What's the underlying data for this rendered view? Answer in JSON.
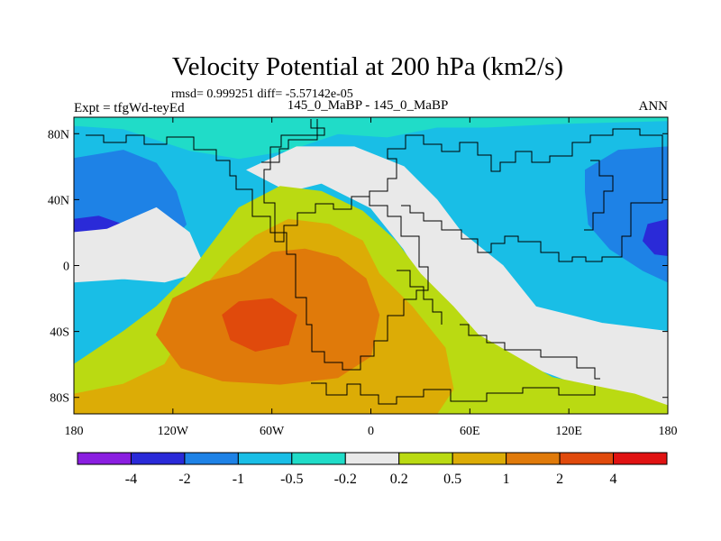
{
  "chart_data": {
    "type": "heatmap",
    "title": "Velocity Potential at 200 hPa (km2/s)",
    "stats": "rmsd= 0.999251 diff= -5.57142e-05",
    "experiment": "Expt = tfgWd-teyEd",
    "case": "145_0_MaBP - 145_0_MaBP",
    "season": "ANN",
    "xlim": [
      -180,
      180
    ],
    "ylim": [
      -90,
      90
    ],
    "x_ticks": [
      {
        "value": -180,
        "label": "180"
      },
      {
        "value": -120,
        "label": "120W"
      },
      {
        "value": -60,
        "label": "60W"
      },
      {
        "value": 0,
        "label": "0"
      },
      {
        "value": 60,
        "label": "60E"
      },
      {
        "value": 120,
        "label": "120E"
      },
      {
        "value": 180,
        "label": "180"
      }
    ],
    "y_ticks": [
      {
        "value": 80,
        "label": "80N"
      },
      {
        "value": 40,
        "label": "40N"
      },
      {
        "value": 0,
        "label": "0"
      },
      {
        "value": -40,
        "label": "40S"
      },
      {
        "value": -80,
        "label": "80S"
      }
    ],
    "colorbar": {
      "colors": [
        "#8a1ee0",
        "#2a2ad8",
        "#1e82e6",
        "#19bee6",
        "#20dcc8",
        "#e9e9e9",
        "#bada12",
        "#dcac06",
        "#e07a0a",
        "#e04a0c",
        "#e01212"
      ],
      "boundaries": [
        "-4",
        "-2",
        "-1",
        "-0.5",
        "-0.2",
        "0.2",
        "0.5",
        "1",
        "2",
        "4"
      ]
    },
    "field_regions": [
      {
        "color": "#1e82e6",
        "value_class": "-2 to -1",
        "location": "west Pacific / north Pacific",
        "polygon": [
          [
            -180,
            65
          ],
          [
            -150,
            70
          ],
          [
            -130,
            62
          ],
          [
            -118,
            45
          ],
          [
            -112,
            25
          ],
          [
            -125,
            10
          ],
          [
            -150,
            3
          ],
          [
            -180,
            5
          ]
        ]
      },
      {
        "color": "#2a2ad8",
        "value_class": "-4 to -2",
        "location": "central Pacific",
        "polygon": [
          [
            -180,
            28
          ],
          [
            -165,
            30
          ],
          [
            -148,
            24
          ],
          [
            -142,
            15
          ],
          [
            -152,
            7
          ],
          [
            -168,
            6
          ],
          [
            -180,
            10
          ]
        ]
      },
      {
        "color": "#1e82e6",
        "value_class": "-2 to -1",
        "location": "east Asia / west Pacific",
        "polygon": [
          [
            130,
            58
          ],
          [
            150,
            70
          ],
          [
            180,
            72
          ],
          [
            180,
            -10
          ],
          [
            165,
            -3
          ],
          [
            145,
            10
          ],
          [
            132,
            25
          ],
          [
            130,
            45
          ]
        ]
      },
      {
        "color": "#2a2ad8",
        "value_class": "-4 to -2",
        "location": "west Pacific edge",
        "polygon": [
          [
            180,
            28
          ],
          [
            168,
            25
          ],
          [
            165,
            15
          ],
          [
            172,
            7
          ],
          [
            180,
            6
          ]
        ]
      },
      {
        "color": "#20dcc8",
        "value_class": "-0.5 to -0.2",
        "location": "Arctic band",
        "polygon": [
          [
            -180,
            90
          ],
          [
            180,
            90
          ],
          [
            180,
            88
          ],
          [
            110,
            86
          ],
          [
            70,
            84
          ],
          [
            40,
            84
          ],
          [
            10,
            78
          ],
          [
            -20,
            80
          ],
          [
            -50,
            70
          ],
          [
            -80,
            65
          ],
          [
            -110,
            70
          ],
          [
            -150,
            83
          ],
          [
            -180,
            85
          ]
        ]
      },
      {
        "color": "#20dcc8",
        "value_class": "-0.5 to -0.2",
        "location": "Indian Ocean",
        "polygon": [
          [
            100,
            -45
          ],
          [
            106,
            -42
          ],
          [
            114,
            -43
          ],
          [
            118,
            -47
          ],
          [
            112,
            -51
          ],
          [
            102,
            -50
          ],
          [
            97,
            -47
          ]
        ]
      },
      {
        "color": "#e9e9e9",
        "value_class": "-0.2 to 0.2",
        "location": "North Atlantic / Europe",
        "polygon": [
          [
            -75,
            58
          ],
          [
            -45,
            72
          ],
          [
            -10,
            72
          ],
          [
            20,
            60
          ],
          [
            40,
            40
          ],
          [
            55,
            20
          ],
          [
            80,
            0
          ],
          [
            100,
            -25
          ],
          [
            140,
            -35
          ],
          [
            180,
            -40
          ],
          [
            180,
            -90
          ],
          [
            140,
            -90
          ],
          [
            120,
            -70
          ],
          [
            80,
            -55
          ],
          [
            60,
            -38
          ],
          [
            35,
            -15
          ],
          [
            20,
            10
          ],
          [
            0,
            35
          ],
          [
            -30,
            50
          ],
          [
            -50,
            45
          ]
        ]
      },
      {
        "color": "#e9e9e9",
        "value_class": "-0.2 to 0.2",
        "location": "east Pacific",
        "polygon": [
          [
            -180,
            -10
          ],
          [
            -150,
            -8
          ],
          [
            -125,
            -10
          ],
          [
            -100,
            -3
          ],
          [
            -110,
            20
          ],
          [
            -130,
            35
          ],
          [
            -160,
            22
          ],
          [
            -180,
            20
          ]
        ]
      },
      {
        "color": "#bada12",
        "value_class": "0.2 to 0.5",
        "location": "Americas to Africa",
        "polygon": [
          [
            -180,
            -60
          ],
          [
            -150,
            -40
          ],
          [
            -130,
            -25
          ],
          [
            -110,
            -5
          ],
          [
            -95,
            15
          ],
          [
            -80,
            35
          ],
          [
            -55,
            48
          ],
          [
            -30,
            45
          ],
          [
            -5,
            33
          ],
          [
            15,
            15
          ],
          [
            30,
            -5
          ],
          [
            50,
            -25
          ],
          [
            65,
            -42
          ],
          [
            110,
            -68
          ],
          [
            160,
            -78
          ],
          [
            180,
            -85
          ],
          [
            180,
            -90
          ],
          [
            -180,
            -90
          ]
        ]
      },
      {
        "color": "#dcac06",
        "value_class": "0.5 to 1",
        "location": "South America / Atlantic",
        "polygon": [
          [
            -180,
            -78
          ],
          [
            -150,
            -72
          ],
          [
            -125,
            -60
          ],
          [
            -110,
            -35
          ],
          [
            -100,
            -12
          ],
          [
            -85,
            5
          ],
          [
            -70,
            18
          ],
          [
            -50,
            28
          ],
          [
            -25,
            25
          ],
          [
            -5,
            15
          ],
          [
            5,
            -5
          ],
          [
            25,
            -25
          ],
          [
            45,
            -50
          ],
          [
            50,
            -75
          ],
          [
            40,
            -90
          ],
          [
            -180,
            -90
          ]
        ]
      },
      {
        "color": "#e07a0a",
        "value_class": "1 to 2",
        "location": "South America",
        "polygon": [
          [
            -130,
            -42
          ],
          [
            -120,
            -20
          ],
          [
            -100,
            -10
          ],
          [
            -80,
            -5
          ],
          [
            -60,
            8
          ],
          [
            -40,
            10
          ],
          [
            -20,
            5
          ],
          [
            -3,
            -8
          ],
          [
            5,
            -30
          ],
          [
            0,
            -55
          ],
          [
            -20,
            -68
          ],
          [
            -55,
            -72
          ],
          [
            -90,
            -70
          ],
          [
            -115,
            -62
          ]
        ]
      },
      {
        "color": "#e04a0c",
        "value_class": "2 to 4",
        "location": "central South America",
        "polygon": [
          [
            -90,
            -30
          ],
          [
            -80,
            -22
          ],
          [
            -60,
            -20
          ],
          [
            -45,
            -30
          ],
          [
            -50,
            -48
          ],
          [
            -70,
            -52
          ],
          [
            -85,
            -45
          ]
        ]
      }
    ],
    "landmask": "yes",
    "grid": "no"
  }
}
